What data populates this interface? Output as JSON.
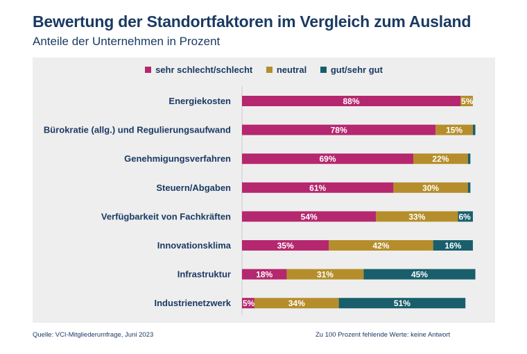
{
  "header": {
    "title": "Bewertung der Standortfaktoren im Vergleich zum Ausland",
    "subtitle": "Anteile der Unternehmen in Prozent"
  },
  "footer": {
    "source": "Quelle: VCI-Mitgliederumfrage, Juni 2023",
    "note": "Zu 100 Prozent fehlende Werte: keine Antwort"
  },
  "colors": {
    "bad": "#b5276e",
    "neutral": "#b58e2b",
    "good": "#185f6b",
    "panel": "#eeeeee",
    "text": "#1b3a63"
  },
  "chart_data": {
    "type": "bar",
    "orientation": "horizontal",
    "stacked": true,
    "title": "Bewertung der Standortfaktoren im Vergleich zum Ausland",
    "subtitle": "Anteile der Unternehmen in Prozent",
    "xlim": [
      0,
      100
    ],
    "legend_position": "top",
    "categories": [
      "Energiekosten",
      "Bürokratie (allg.) und Regulierungsaufwand",
      "Genehmigungsverfahren",
      "Steuern/Abgaben",
      "Verfügbarkeit von Fachkräften",
      "Innovationsklima",
      "Infrastruktur",
      "Industrienetzwerk"
    ],
    "series": [
      {
        "name": "sehr schlecht/schlecht",
        "color": "#b5276e",
        "values": [
          88,
          78,
          69,
          61,
          54,
          35,
          18,
          5
        ],
        "labels": [
          "88%",
          "78%",
          "69%",
          "61%",
          "54%",
          "35%",
          "18%",
          "5%"
        ]
      },
      {
        "name": "neutral",
        "color": "#b58e2b",
        "values": [
          5,
          15,
          22,
          30,
          33,
          42,
          31,
          34
        ],
        "labels": [
          "5%",
          "15%",
          "22%",
          "30%",
          "33%",
          "42%",
          "31%",
          "34%"
        ]
      },
      {
        "name": "gut/sehr gut",
        "color": "#185f6b",
        "values": [
          0,
          1,
          1,
          1,
          6,
          16,
          45,
          51
        ],
        "labels": [
          "",
          "",
          "",
          "",
          "6%",
          "16%",
          "45%",
          "51%"
        ]
      }
    ]
  }
}
